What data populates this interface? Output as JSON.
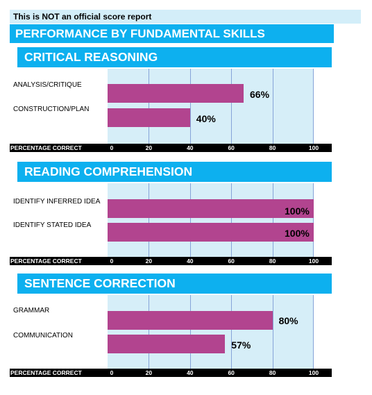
{
  "notice": "This is NOT an official score report",
  "title": "PERFORMANCE BY FUNDAMENTAL SKILLS",
  "colors": {
    "header_blue": "#0db0ef",
    "notice_bg": "#d3eef9",
    "plot_bg": "#d6eef8",
    "gridline": "#86a3d8",
    "bar": "#b2448f",
    "axis_bar": "#000000"
  },
  "chart_data": [
    {
      "type": "bar",
      "orientation": "horizontal",
      "title": "CRITICAL REASONING",
      "categories": [
        "ANALYSIS/CRITIQUE",
        "CONSTRUCTION/PLAN"
      ],
      "values": [
        66,
        40
      ],
      "value_labels": [
        "66%",
        "40%"
      ],
      "xlabel": "PERCENTAGE CORRECT",
      "xlim": [
        0,
        100
      ],
      "ticks": [
        "0",
        "20",
        "40",
        "60",
        "80",
        "100"
      ],
      "grid": true
    },
    {
      "type": "bar",
      "orientation": "horizontal",
      "title": "READING COMPREHENSION",
      "categories": [
        "IDENTIFY INFERRED IDEA",
        "IDENTIFY STATED IDEA"
      ],
      "values": [
        100,
        100
      ],
      "value_labels": [
        "100%",
        "100%"
      ],
      "xlabel": "PERCENTAGE CORRECT",
      "xlim": [
        0,
        100
      ],
      "ticks": [
        "0",
        "20",
        "40",
        "60",
        "80",
        "100"
      ],
      "grid": true
    },
    {
      "type": "bar",
      "orientation": "horizontal",
      "title": "SENTENCE CORRECTION",
      "categories": [
        "GRAMMAR",
        "COMMUNICATION"
      ],
      "values": [
        80,
        57
      ],
      "value_labels": [
        "80%",
        "57%"
      ],
      "xlabel": "PERCENTAGE CORRECT",
      "xlim": [
        0,
        100
      ],
      "ticks": [
        "0",
        "20",
        "40",
        "60",
        "80",
        "100"
      ],
      "grid": true
    }
  ]
}
